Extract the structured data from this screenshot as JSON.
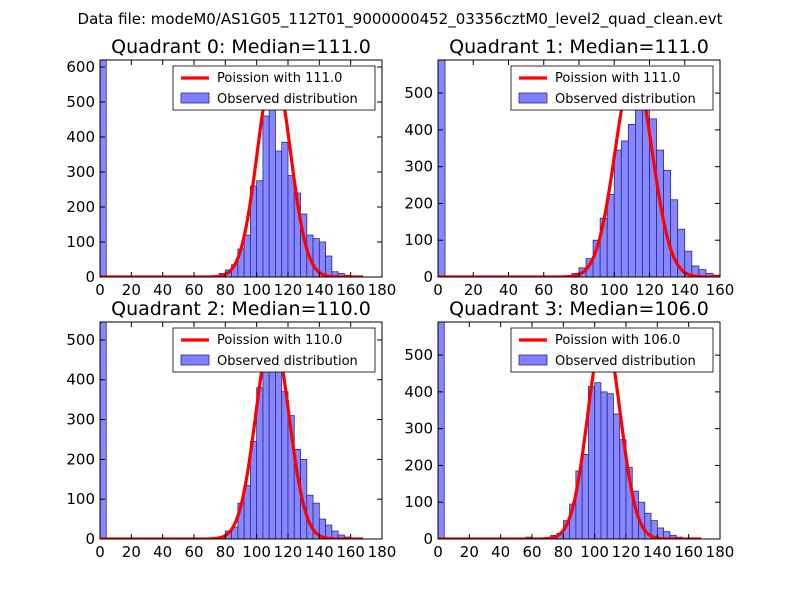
{
  "figure_title": "Data file: modeM0/AS1G05_112T01_9000000452_03356cztM0_level2_quad_clean.evt",
  "colors": {
    "bar_fill": "#7f7fff",
    "bar_stroke": "#2b2b8a",
    "poisson_line": "#ff0000",
    "axis": "#000000",
    "background": "#ffffff"
  },
  "chart_data": [
    {
      "type": "bar",
      "title": "Quadrant 0: Median=111.0",
      "xlim": [
        0,
        180
      ],
      "ylim": [
        0,
        620
      ],
      "xticks": [
        "0",
        "20",
        "40",
        "60",
        "80",
        "100",
        "120",
        "140",
        "160",
        "180"
      ],
      "yticks": [
        "0",
        "100",
        "200",
        "300",
        "400",
        "500",
        "600"
      ],
      "bin_width": 4,
      "bins": [
        {
          "x": 0,
          "y": 620
        },
        {
          "x": 76,
          "y": 10
        },
        {
          "x": 80,
          "y": 20
        },
        {
          "x": 84,
          "y": 35
        },
        {
          "x": 88,
          "y": 80
        },
        {
          "x": 92,
          "y": 120
        },
        {
          "x": 96,
          "y": 260
        },
        {
          "x": 100,
          "y": 275
        },
        {
          "x": 104,
          "y": 460
        },
        {
          "x": 108,
          "y": 500
        },
        {
          "x": 112,
          "y": 360
        },
        {
          "x": 116,
          "y": 385
        },
        {
          "x": 120,
          "y": 290
        },
        {
          "x": 124,
          "y": 240
        },
        {
          "x": 128,
          "y": 180
        },
        {
          "x": 132,
          "y": 120
        },
        {
          "x": 136,
          "y": 110
        },
        {
          "x": 140,
          "y": 100
        },
        {
          "x": 144,
          "y": 60
        },
        {
          "x": 148,
          "y": 15
        },
        {
          "x": 152,
          "y": 10
        },
        {
          "x": 156,
          "y": 5
        }
      ],
      "poisson": {
        "mean": 111.0,
        "peak": 595,
        "sigma": 10.5,
        "x_range": [
          0,
          168
        ]
      },
      "legend": {
        "line_label": "Poission with 111.0",
        "bar_label": "Observed distribution",
        "loc": "upper right"
      }
    },
    {
      "type": "bar",
      "title": "Quadrant 1: Median=111.0",
      "xlim": [
        0,
        160
      ],
      "ylim": [
        0,
        590
      ],
      "xticks": [
        "0",
        "20",
        "40",
        "60",
        "80",
        "100",
        "120",
        "140",
        "160"
      ],
      "yticks": [
        "0",
        "100",
        "200",
        "300",
        "400",
        "500"
      ],
      "bin_width": 4,
      "bins": [
        {
          "x": 0,
          "y": 590
        },
        {
          "x": 76,
          "y": 10
        },
        {
          "x": 80,
          "y": 25
        },
        {
          "x": 84,
          "y": 50
        },
        {
          "x": 88,
          "y": 100
        },
        {
          "x": 92,
          "y": 160
        },
        {
          "x": 96,
          "y": 225
        },
        {
          "x": 100,
          "y": 345
        },
        {
          "x": 104,
          "y": 370
        },
        {
          "x": 108,
          "y": 415
        },
        {
          "x": 112,
          "y": 480
        },
        {
          "x": 116,
          "y": 510
        },
        {
          "x": 120,
          "y": 430
        },
        {
          "x": 124,
          "y": 345
        },
        {
          "x": 128,
          "y": 290
        },
        {
          "x": 132,
          "y": 210
        },
        {
          "x": 136,
          "y": 130
        },
        {
          "x": 140,
          "y": 70
        },
        {
          "x": 144,
          "y": 30
        },
        {
          "x": 148,
          "y": 20
        },
        {
          "x": 152,
          "y": 10
        },
        {
          "x": 156,
          "y": 5
        }
      ],
      "poisson": {
        "mean": 111.0,
        "peak": 565,
        "sigma": 10.5,
        "x_range": [
          0,
          160
        ]
      },
      "legend": {
        "line_label": "Poission with 111.0",
        "bar_label": "Observed distribution",
        "loc": "upper right"
      }
    },
    {
      "type": "bar",
      "title": "Quadrant 2: Median=110.0",
      "xlim": [
        0,
        180
      ],
      "ylim": [
        0,
        545
      ],
      "xticks": [
        "0",
        "20",
        "40",
        "60",
        "80",
        "100",
        "120",
        "140",
        "160",
        "180"
      ],
      "yticks": [
        "0",
        "100",
        "200",
        "300",
        "400",
        "500"
      ],
      "bin_width": 4,
      "bins": [
        {
          "x": 0,
          "y": 545
        },
        {
          "x": 76,
          "y": 5
        },
        {
          "x": 80,
          "y": 20
        },
        {
          "x": 84,
          "y": 30
        },
        {
          "x": 88,
          "y": 90
        },
        {
          "x": 92,
          "y": 135
        },
        {
          "x": 96,
          "y": 245
        },
        {
          "x": 100,
          "y": 380
        },
        {
          "x": 104,
          "y": 440
        },
        {
          "x": 108,
          "y": 470
        },
        {
          "x": 112,
          "y": 480
        },
        {
          "x": 116,
          "y": 370
        },
        {
          "x": 120,
          "y": 310
        },
        {
          "x": 124,
          "y": 225
        },
        {
          "x": 128,
          "y": 200
        },
        {
          "x": 132,
          "y": 110
        },
        {
          "x": 136,
          "y": 90
        },
        {
          "x": 140,
          "y": 50
        },
        {
          "x": 144,
          "y": 35
        },
        {
          "x": 148,
          "y": 20
        },
        {
          "x": 152,
          "y": 10
        },
        {
          "x": 156,
          "y": 5
        }
      ],
      "poisson": {
        "mean": 110.0,
        "peak": 520,
        "sigma": 10.5,
        "x_range": [
          0,
          168
        ]
      },
      "legend": {
        "line_label": "Poission with 110.0",
        "bar_label": "Observed distribution",
        "loc": "upper right"
      }
    },
    {
      "type": "bar",
      "title": "Quadrant 3: Median=106.0",
      "xlim": [
        0,
        180
      ],
      "ylim": [
        0,
        590
      ],
      "xticks": [
        "0",
        "20",
        "40",
        "60",
        "80",
        "100",
        "120",
        "140",
        "160",
        "180"
      ],
      "yticks": [
        "0",
        "100",
        "200",
        "300",
        "400",
        "500"
      ],
      "bin_width": 4,
      "bins": [
        {
          "x": 0,
          "y": 590
        },
        {
          "x": 56,
          "y": 5
        },
        {
          "x": 72,
          "y": 10
        },
        {
          "x": 76,
          "y": 15
        },
        {
          "x": 80,
          "y": 50
        },
        {
          "x": 84,
          "y": 95
        },
        {
          "x": 88,
          "y": 185
        },
        {
          "x": 92,
          "y": 230
        },
        {
          "x": 96,
          "y": 415
        },
        {
          "x": 100,
          "y": 425
        },
        {
          "x": 104,
          "y": 400
        },
        {
          "x": 108,
          "y": 395
        },
        {
          "x": 112,
          "y": 340
        },
        {
          "x": 116,
          "y": 270
        },
        {
          "x": 120,
          "y": 195
        },
        {
          "x": 124,
          "y": 130
        },
        {
          "x": 128,
          "y": 100
        },
        {
          "x": 132,
          "y": 70
        },
        {
          "x": 136,
          "y": 50
        },
        {
          "x": 140,
          "y": 30
        },
        {
          "x": 144,
          "y": 20
        },
        {
          "x": 148,
          "y": 10
        },
        {
          "x": 152,
          "y": 5
        }
      ],
      "poisson": {
        "mean": 106.0,
        "peak": 565,
        "sigma": 10.3,
        "x_range": [
          0,
          168
        ]
      },
      "legend": {
        "line_label": "Poission with 106.0",
        "bar_label": "Observed distribution",
        "loc": "upper right"
      }
    }
  ]
}
